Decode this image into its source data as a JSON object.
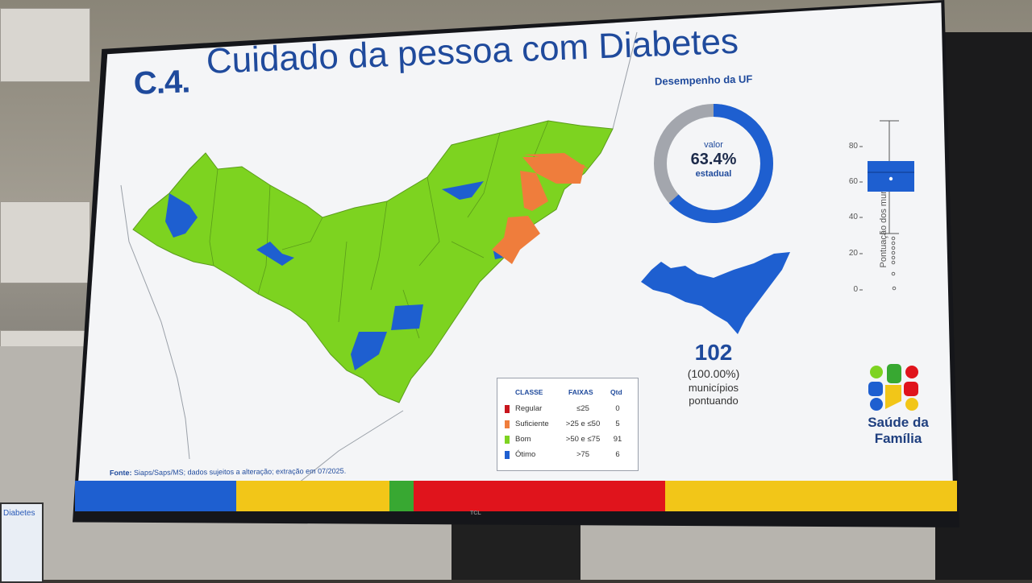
{
  "slide": {
    "title_prefix": "C.4.",
    "title": "Cuidado da pessoa com Diabetes",
    "uf_heading": "Desempenho da UF",
    "donut": {
      "label_top": "valor",
      "value_text": "63.4%",
      "value": 0.634,
      "label_bottom": "estadual",
      "filled_color": "#1e5fd0",
      "remaining_color": "#a3a6ad"
    },
    "municipalities": {
      "count": "102",
      "percent": "(100.00%)",
      "line1": "municípios",
      "line2": "pontuando"
    },
    "boxplot": {
      "axis_label": "Pontuação dos municípios",
      "ticks": [
        "80",
        "60",
        "40",
        "20",
        "0"
      ],
      "box_color": "#1e5fd0"
    },
    "legend": {
      "headers": [
        "CLASSE",
        "FAIXAS",
        "Qtd"
      ],
      "rows": [
        {
          "classe": "Regular",
          "faixa": "≤25",
          "qtd": "0",
          "color": "#c8161d"
        },
        {
          "classe": "Suficiente",
          "faixa": ">25 e ≤50",
          "qtd": "5",
          "color": "#ef7d3c"
        },
        {
          "classe": "Bom",
          "faixa": ">50 e ≤75",
          "qtd": "91",
          "color": "#7ed321"
        },
        {
          "classe": "Ótimo",
          "faixa": ">75",
          "qtd": "6",
          "color": "#1e5fd0"
        }
      ]
    },
    "source": {
      "label": "Fonte:",
      "text": "Siaps/Saps/MS; dados sujeitos a alteração; extração em 07/2025."
    },
    "brand": {
      "line1": "Saúde da",
      "line2": "Família"
    },
    "band_colors": [
      "#1e5fd0",
      "#f2c618",
      "#38a832",
      "#e0141c",
      "#f2c618"
    ]
  },
  "tv": {
    "logo": "TCL"
  },
  "background": {
    "side_screen_text": "Diabetes"
  }
}
